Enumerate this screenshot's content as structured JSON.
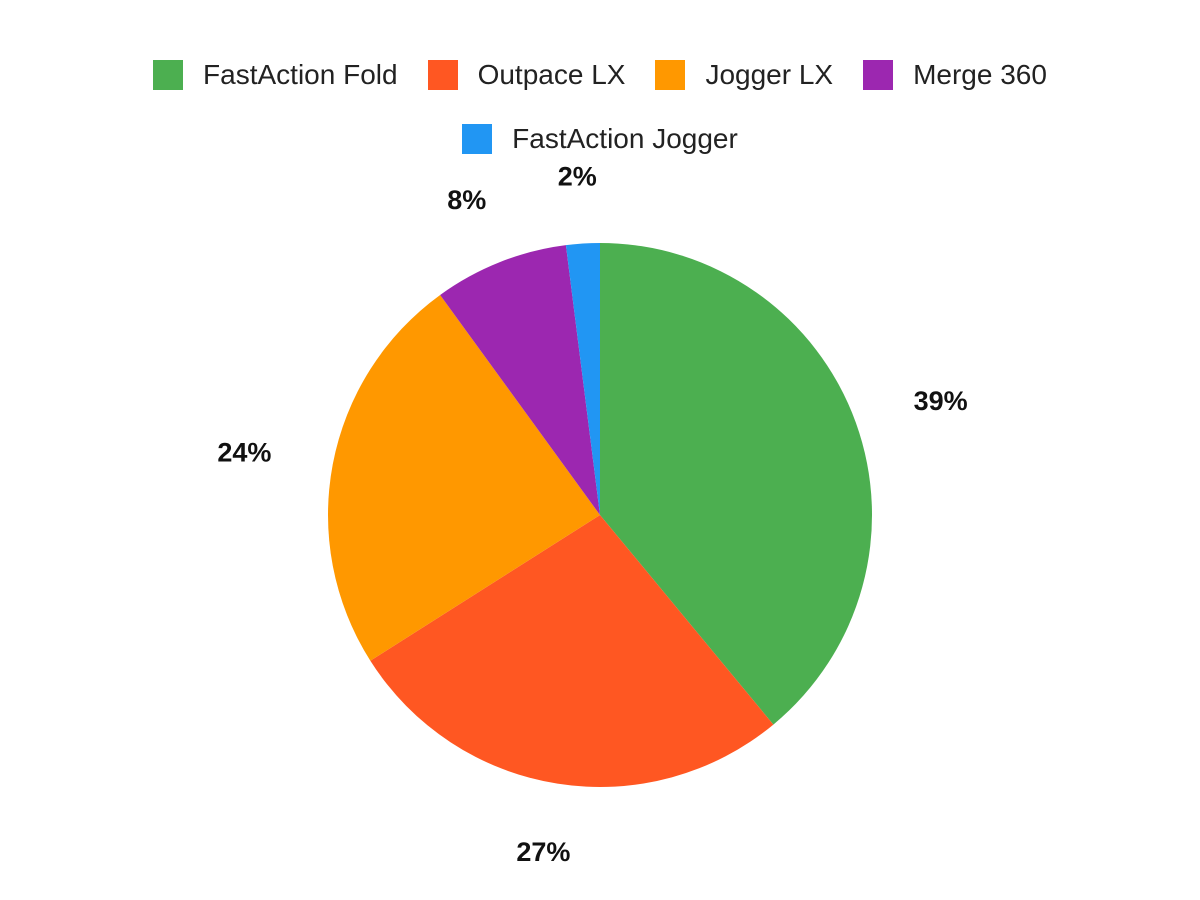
{
  "chart_data": {
    "type": "pie",
    "categories": [
      "FastAction Fold",
      "Outpace LX",
      "Jogger LX",
      "Merge 360",
      "FastAction Jogger"
    ],
    "values": [
      39,
      27,
      24,
      8,
      2
    ],
    "labels": [
      "39%",
      "27%",
      "24%",
      "8%",
      "2%"
    ],
    "colors": [
      "#4CAF50",
      "#FF5722",
      "#FF9800",
      "#9C27B0",
      "#2196F3"
    ],
    "legend_position": "top",
    "start_angle": "top, clockwise"
  }
}
